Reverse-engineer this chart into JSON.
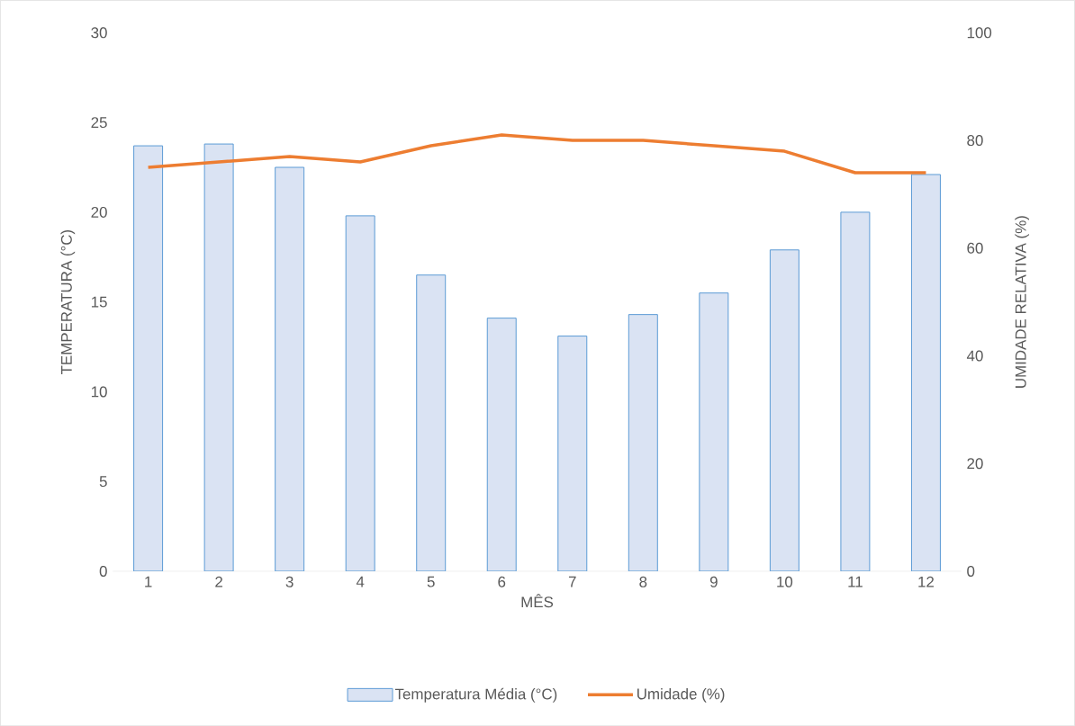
{
  "chart_data": {
    "type": "bar",
    "xlabel": "MÊS",
    "ylabel": "TEMPERATURA (°C)",
    "y2label": "UMIDADE RELATIVA (%)",
    "categories": [
      "1",
      "2",
      "3",
      "4",
      "5",
      "6",
      "7",
      "8",
      "9",
      "10",
      "11",
      "12"
    ],
    "series": [
      {
        "name": "Temperatura Média (°C)",
        "color": "#dae3f3",
        "values": [
          23.7,
          23.8,
          22.5,
          19.8,
          16.5,
          14.1,
          13.1,
          14.3,
          15.5,
          17.9,
          20.0,
          22.1
        ]
      },
      {
        "name": "Umidade (%)",
        "type": "line",
        "axis": "y2",
        "color": "#ed7d31",
        "values": [
          75,
          76,
          77,
          76,
          79,
          81,
          80,
          80,
          79,
          78,
          74,
          74
        ]
      }
    ],
    "ylim": [
      0,
      30
    ],
    "yticks": [
      0,
      5,
      10,
      15,
      20,
      25,
      30
    ],
    "y2lim": [
      0,
      100
    ],
    "y2ticks": [
      0,
      20,
      40,
      60,
      80,
      100
    ],
    "legend": "bottom",
    "grid": false
  }
}
